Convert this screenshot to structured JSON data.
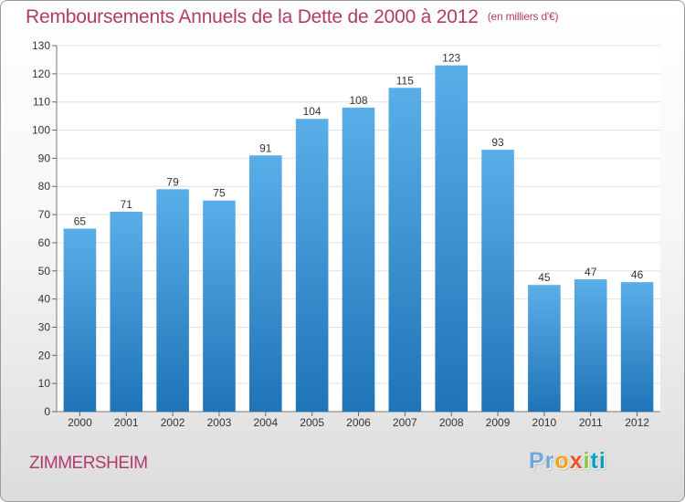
{
  "header": {
    "title": "Remboursements Annuels de la Dette de 2000 à 2012",
    "unit": "(en milliers d'€)"
  },
  "footer": {
    "city": "ZIMMERSHEIM",
    "logo": [
      "Pr",
      "o",
      "x",
      "i",
      "ti"
    ]
  },
  "colors": {
    "bar_top": "#5aaee8",
    "bar_bottom": "#1f74b8",
    "title": "#b23a6a",
    "axis": "#333333"
  },
  "chart_data": {
    "type": "bar",
    "title": "Remboursements Annuels de la Dette de 2000 à 2012",
    "subtitle": "(en milliers d'€)",
    "categories": [
      "2000",
      "2001",
      "2002",
      "2003",
      "2004",
      "2005",
      "2006",
      "2007",
      "2008",
      "2009",
      "2010",
      "2011",
      "2012"
    ],
    "values": [
      65,
      71,
      79,
      75,
      91,
      104,
      108,
      115,
      123,
      93,
      45,
      47,
      46
    ],
    "ylim": [
      0,
      130
    ],
    "yticks": [
      0,
      10,
      20,
      30,
      40,
      50,
      60,
      70,
      80,
      90,
      100,
      110,
      120,
      130
    ],
    "grid": true,
    "legend": "none"
  }
}
